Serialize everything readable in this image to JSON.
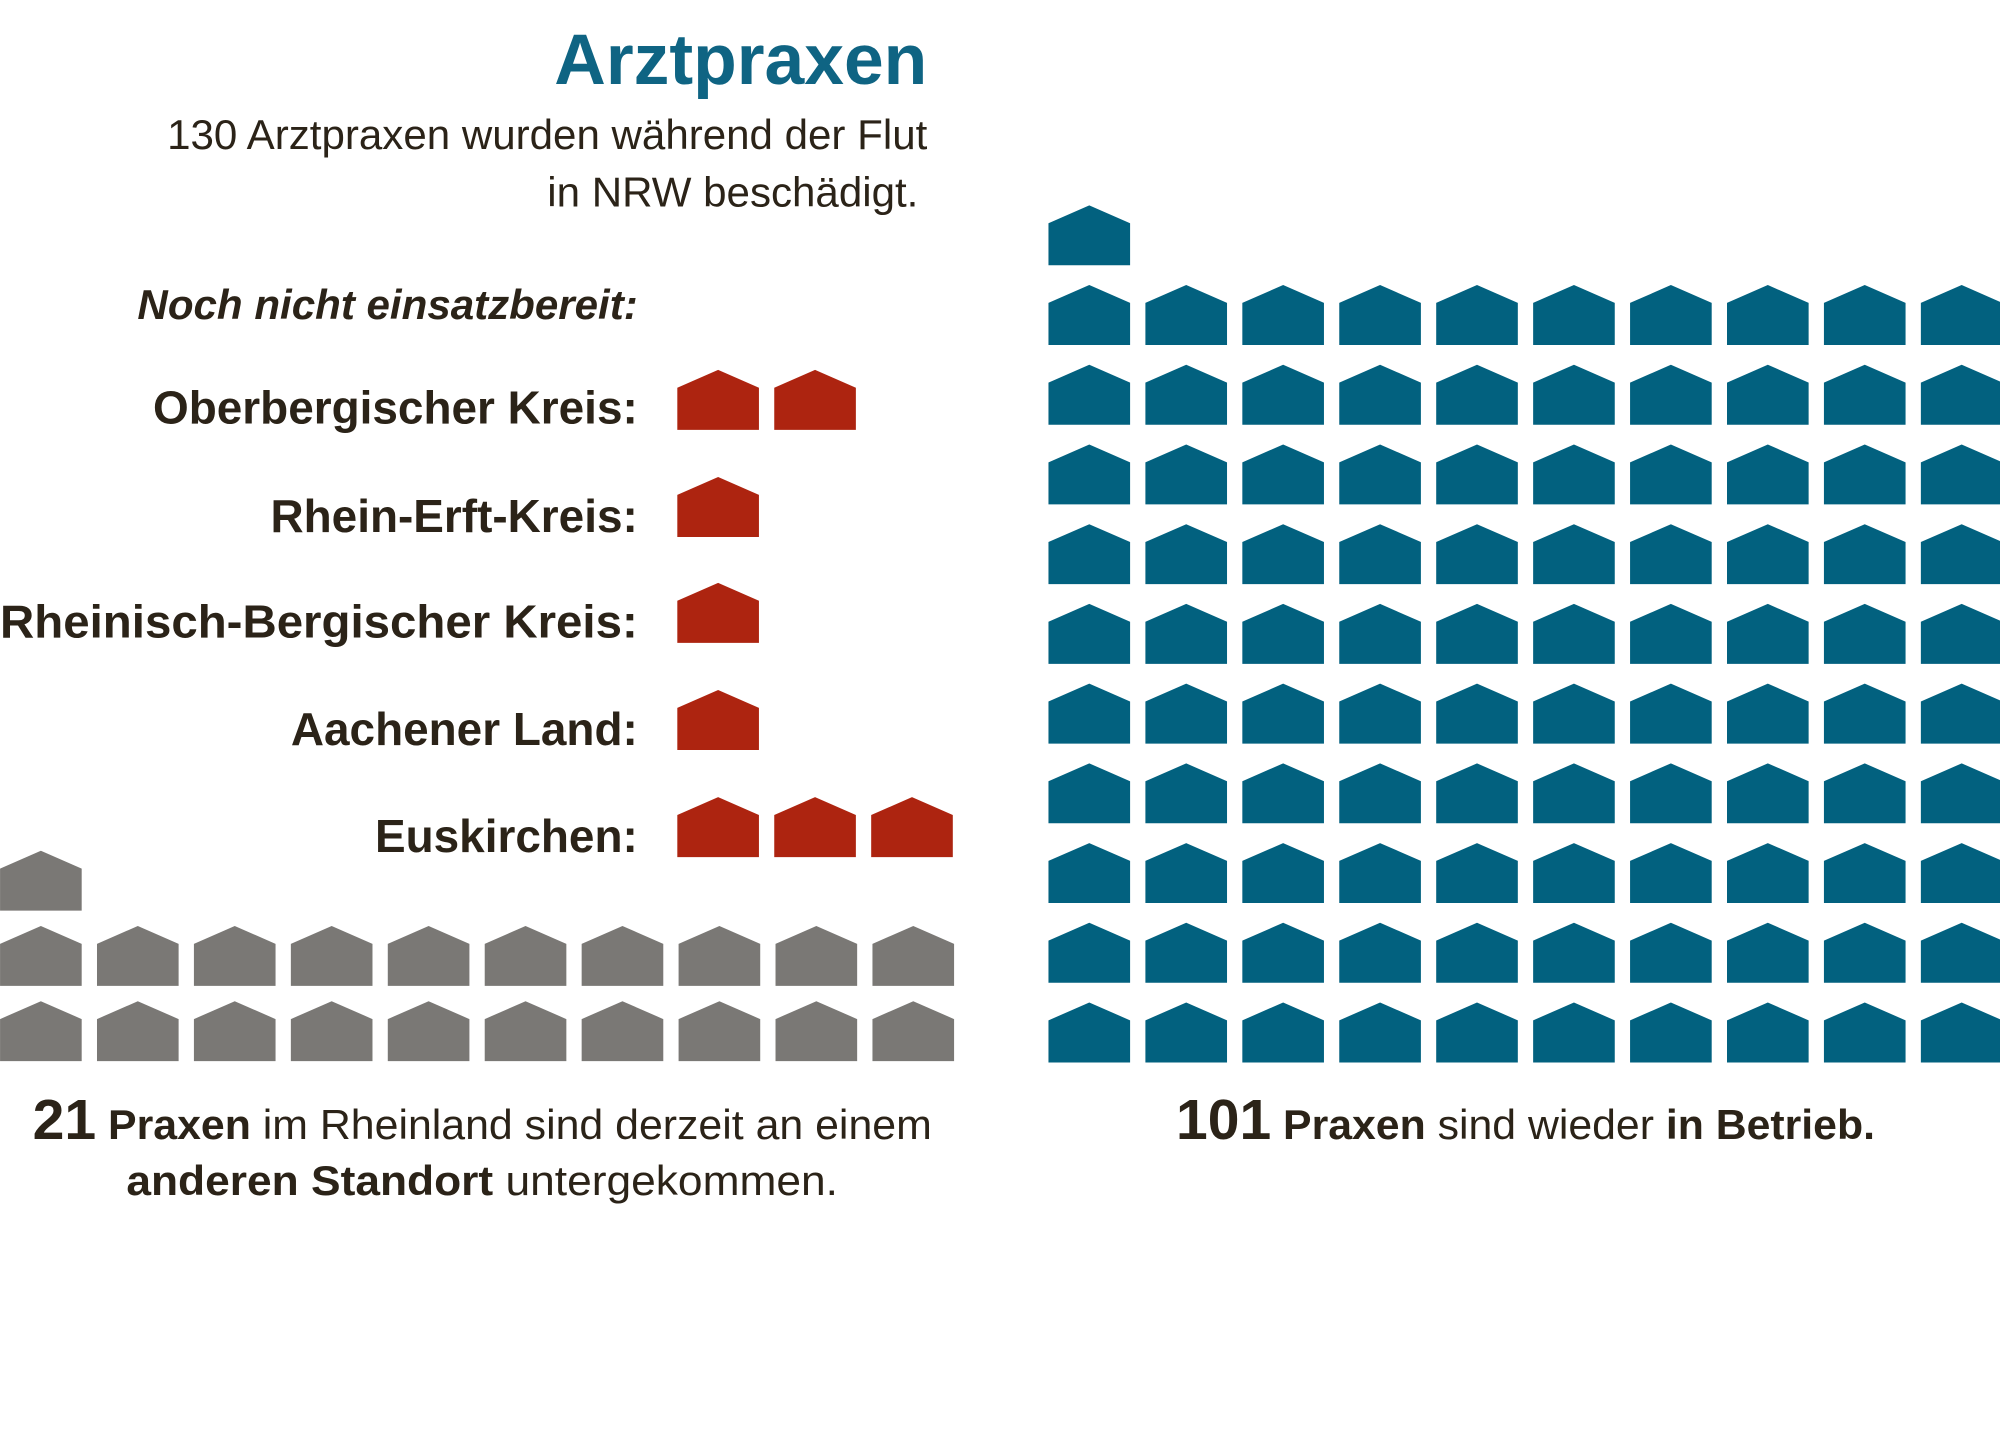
{
  "title": "Arztpraxen",
  "subtitle": [
    "130 Arztpraxen wurden während der Flut",
    "in NRW beschädigt."
  ],
  "section_header": "Noch nicht einsatzbereit:",
  "colors": {
    "title": "#0f6483",
    "not_ready": "#ad2410",
    "relocated": "#7a7875",
    "operating": "#02617f",
    "text": "#2b2318"
  },
  "icon": "house-icon",
  "chart_data": {
    "type": "bar",
    "title": "Arztpraxen",
    "categories": [
      "Oberbergischer Kreis:",
      "Rhein-Erft-Kreis:",
      "Rheinisch-Bergischer Kreis:",
      "Aachener Land:",
      "Euskirchen:"
    ],
    "values": [
      2,
      1,
      1,
      1,
      3
    ],
    "relocated": 21,
    "operating": 101
  },
  "captions": {
    "relocated": {
      "num": "21",
      "w1": "Praxen",
      "t1": " im Rheinland sind derzeit an einem",
      "w2": "anderen  Standort",
      "t2": " untergekommen."
    },
    "operating": {
      "num": "101",
      "w1": "Praxen",
      "t1": " sind wieder ",
      "w2": "in Betrieb."
    }
  }
}
